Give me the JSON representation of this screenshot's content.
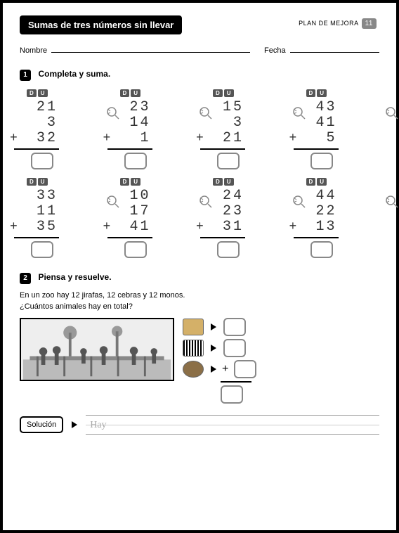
{
  "title": "Sumas de tres números sin llevar",
  "plan_label": "PLAN DE MEJORA",
  "plan_num": "11",
  "name_label": "Nombre",
  "date_label": "Fecha",
  "section1": {
    "num": "1",
    "title": "Completa y suma."
  },
  "du": {
    "d": "D",
    "u": "U"
  },
  "problems": [
    {
      "a": "21",
      "b": "3",
      "c": "32"
    },
    {
      "a": "23",
      "b": "14",
      "c": "1"
    },
    {
      "a": "15",
      "b": "3",
      "c": "21"
    },
    {
      "a": "43",
      "b": "41",
      "c": "5"
    },
    {
      "a": "33",
      "b": "11",
      "c": "35"
    },
    {
      "a": "10",
      "b": "17",
      "c": "41"
    },
    {
      "a": "24",
      "b": "23",
      "c": "31"
    },
    {
      "a": "44",
      "b": "22",
      "c": "13"
    }
  ],
  "section2": {
    "num": "2",
    "title": "Piensa y resuelve."
  },
  "word1": "En un zoo hay 12 jirafas, 12 cebras y 12 monos.",
  "word2": "¿Cuántos animales hay en total?",
  "plus": "+",
  "solucion": "Solución",
  "hay": "Hay"
}
